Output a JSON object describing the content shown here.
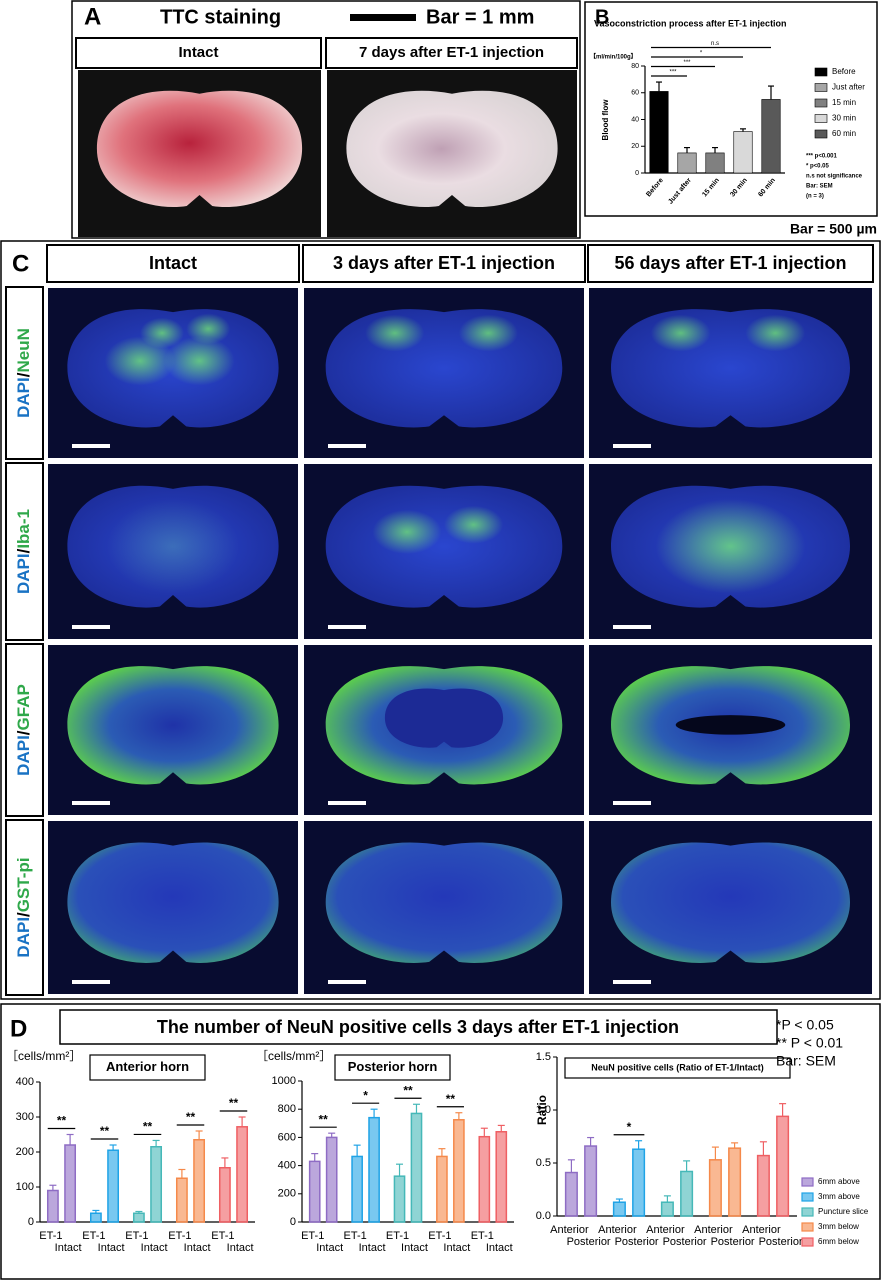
{
  "panel_a": {
    "letter": "A",
    "title": "TTC staining",
    "scale": "Bar = 1 mm",
    "columns": [
      "Intact",
      "7 days after ET-1 injection"
    ]
  },
  "panel_b": {
    "letter": "B"
  },
  "scale_note": "Bar = 500 µm",
  "panel_c": {
    "letter": "C",
    "columns": [
      "Intact",
      "3 days after ET-1 injection",
      "56 days after ET-1 injection"
    ],
    "rows": [
      [
        "DAPI",
        "/",
        "NeuN"
      ],
      [
        "DAPI",
        "/",
        "Iba-1"
      ],
      [
        "DAPI",
        "/",
        "GFAP"
      ],
      [
        "DAPI",
        "/",
        "GST-pi"
      ]
    ]
  },
  "panel_d": {
    "letter": "D",
    "title": "The number of NeuN positive cells 3 days after ET-1 injection",
    "notes": [
      "*P < 0.05",
      "** P < 0.01",
      "Bar: SEM"
    ]
  },
  "chart_data": [
    {
      "type": "bar",
      "title": "Vasoconstriction process after ET-1 injection",
      "y_unit": "【ml/min/100g】",
      "ylabel": "Blood flow",
      "categories": [
        "Before",
        "Just after",
        "15 min",
        "30 min",
        "60 min"
      ],
      "values": [
        61,
        15,
        15,
        31,
        55
      ],
      "errors": [
        7,
        4,
        4,
        2,
        10
      ],
      "colors": [
        "#000000",
        "#a6a6a6",
        "#808080",
        "#d9d9d9",
        "#595959"
      ],
      "significance": [
        null,
        "***",
        "***",
        "*",
        "n.s"
      ],
      "ylim": [
        0,
        80
      ],
      "yticks": [
        0,
        20,
        40,
        60,
        80
      ],
      "legend": "right",
      "notes": [
        "*** p<0.001",
        "*    p<0.05",
        "n.s not significance",
        "Bar: SEM",
        "(n = 3)"
      ]
    },
    {
      "type": "grouped_bar",
      "title": "Anterior horn",
      "y_unit": "［cells/mm²］",
      "categories": [
        "ET-1",
        "Intact"
      ],
      "series": [
        {
          "color": "#8e6cc4",
          "values": [
            90,
            220
          ],
          "errors": [
            15,
            30
          ],
          "significance": "**"
        },
        {
          "color": "#1fa3e6",
          "values": [
            25,
            205
          ],
          "errors": [
            8,
            15
          ],
          "significance": "**"
        },
        {
          "color": "#45b8b8",
          "values": [
            25,
            215
          ],
          "errors": [
            5,
            18
          ],
          "significance": "**"
        },
        {
          "color": "#f5894a",
          "values": [
            125,
            235
          ],
          "errors": [
            25,
            25
          ],
          "significance": "**"
        },
        {
          "color": "#ef5f63",
          "values": [
            155,
            272
          ],
          "errors": [
            28,
            28
          ],
          "significance": "**"
        }
      ],
      "ylim": [
        0,
        400
      ],
      "yticks": [
        0,
        100,
        200,
        300,
        400
      ]
    },
    {
      "type": "grouped_bar",
      "title": "Posterior horn",
      "y_unit": "［cells/mm²］",
      "categories": [
        "ET-1",
        "Intact"
      ],
      "series": [
        {
          "color": "#8e6cc4",
          "values": [
            430,
            600
          ],
          "errors": [
            55,
            30
          ],
          "significance": "**"
        },
        {
          "color": "#1fa3e6",
          "values": [
            465,
            740
          ],
          "errors": [
            80,
            60
          ],
          "significance": "*"
        },
        {
          "color": "#45b8b8",
          "values": [
            325,
            770
          ],
          "errors": [
            85,
            65
          ],
          "significance": "**"
        },
        {
          "color": "#f5894a",
          "values": [
            465,
            725
          ],
          "errors": [
            55,
            50
          ],
          "significance": "**"
        },
        {
          "color": "#ef5f63",
          "values": [
            605,
            640
          ],
          "errors": [
            60,
            45
          ],
          "significance": null
        }
      ],
      "ylim": [
        0,
        1000
      ],
      "yticks": [
        0,
        200,
        400,
        600,
        800,
        1000
      ]
    },
    {
      "type": "grouped_bar",
      "title": "NeuN positive cells (Ratio of ET-1/Intact)",
      "ylabel": "Ratio",
      "categories": [
        "Anterior",
        "Posterior"
      ],
      "series": [
        {
          "name": "6mm above",
          "color": "#8e6cc4",
          "values": [
            0.41,
            0.66
          ],
          "errors": [
            0.12,
            0.08
          ],
          "significance": null
        },
        {
          "name": "3mm above",
          "color": "#1fa3e6",
          "values": [
            0.13,
            0.63
          ],
          "errors": [
            0.03,
            0.08
          ],
          "significance": "*"
        },
        {
          "name": "Puncture slice",
          "color": "#45b8b8",
          "values": [
            0.13,
            0.42
          ],
          "errors": [
            0.06,
            0.1
          ],
          "significance": null
        },
        {
          "name": "3mm below",
          "color": "#f5894a",
          "values": [
            0.53,
            0.64
          ],
          "errors": [
            0.12,
            0.05
          ],
          "significance": null
        },
        {
          "name": "6mm below",
          "color": "#ef5f63",
          "values": [
            0.57,
            0.94
          ],
          "errors": [
            0.13,
            0.12
          ],
          "significance": null
        }
      ],
      "ylim": [
        0,
        1.5
      ],
      "yticks": [
        {
          "value": 0,
          "label": "0.0"
        },
        0.5,
        {
          "value": 1,
          "label": "1.0"
        },
        1.5
      ],
      "legend": "lower right"
    }
  ]
}
